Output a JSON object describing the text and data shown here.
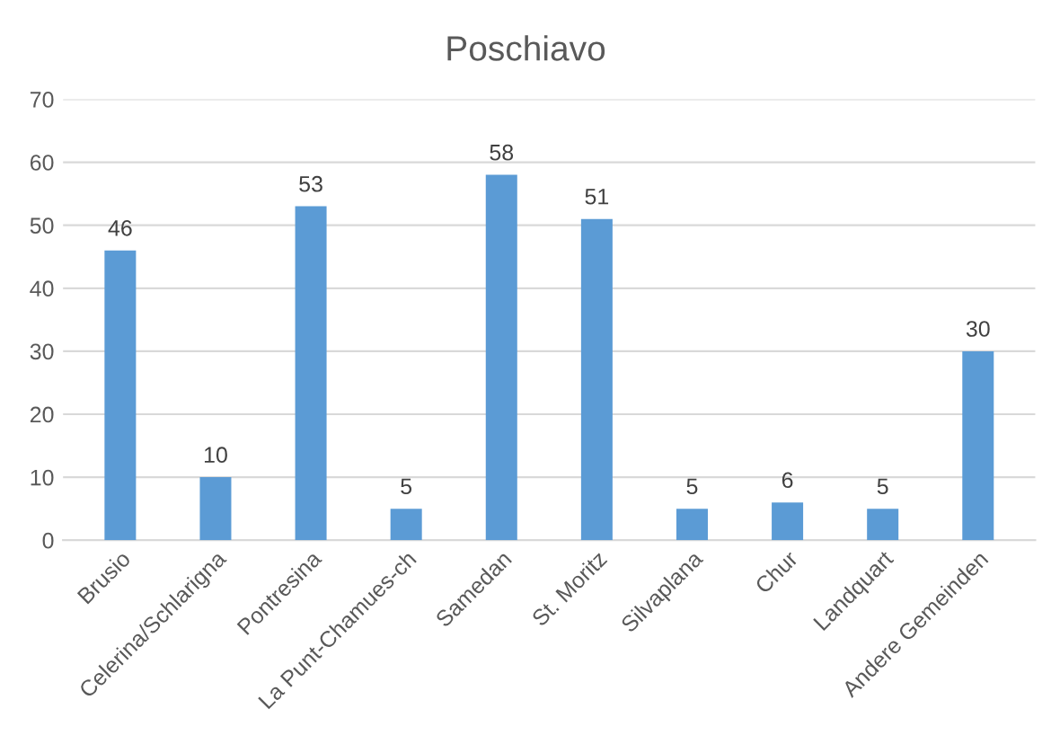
{
  "chart_data": {
    "type": "bar",
    "title": "Poschiavo",
    "categories": [
      "Brusio",
      "Celerina/Schlarigna",
      "Pontresina",
      "La Punt-Chamues-ch",
      "Samedan",
      "St. Moritz",
      "Silvaplana",
      "Chur",
      "Landquart",
      "Andere Gemeinden"
    ],
    "values": [
      46,
      10,
      53,
      5,
      58,
      51,
      5,
      6,
      5,
      30
    ],
    "color": "#5b9bd5",
    "ylim": [
      0,
      70
    ],
    "yticks": [
      0,
      10,
      20,
      30,
      40,
      50,
      60,
      70
    ],
    "grid": "y",
    "data_labels": true,
    "legend": false
  }
}
